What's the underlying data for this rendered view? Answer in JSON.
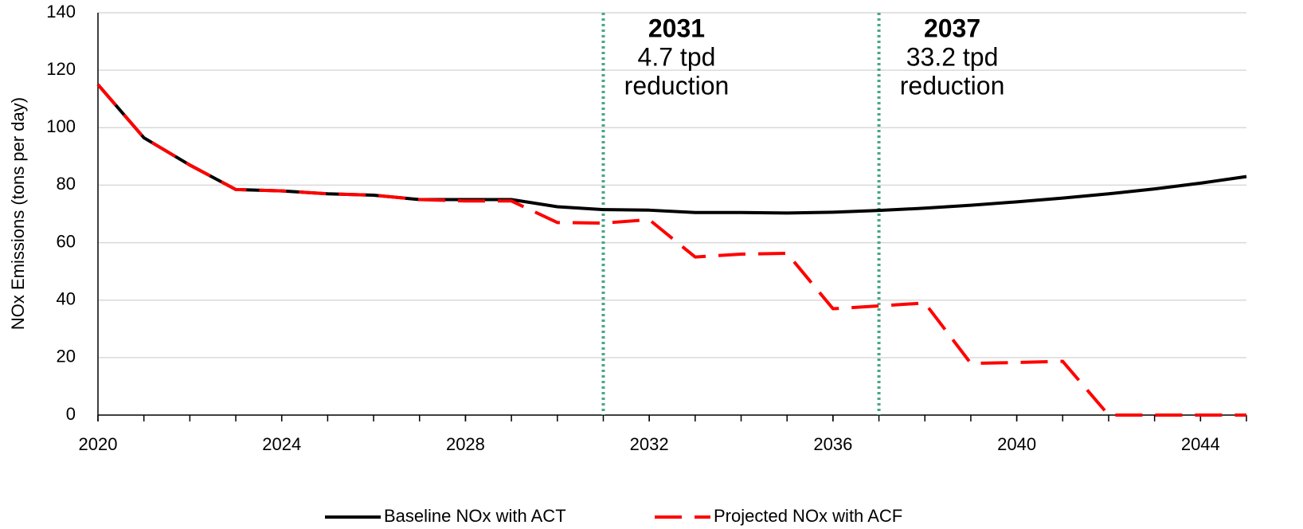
{
  "chart_data": {
    "type": "line",
    "ylabel": "NOx Emissions (tons per day)",
    "x": [
      2020,
      2021,
      2022,
      2023,
      2024,
      2025,
      2026,
      2027,
      2028,
      2029,
      2030,
      2031,
      2032,
      2033,
      2034,
      2035,
      2036,
      2037,
      2038,
      2039,
      2040,
      2041,
      2042,
      2043,
      2044,
      2045
    ],
    "series": [
      {
        "name": "Baseline NOx with ACT",
        "color": "#000000",
        "dash": false,
        "values": [
          115,
          96.5,
          87,
          78.5,
          78,
          77,
          76.5,
          75,
          75,
          75,
          72.5,
          71.5,
          71.3,
          70.5,
          70.5,
          70.3,
          70.6,
          71.2,
          72,
          73,
          74.2,
          75.5,
          77,
          78.7,
          80.7,
          83
        ]
      },
      {
        "name": "Projected NOx with ACF",
        "color": "#ff0000",
        "dash": true,
        "values": [
          115,
          96.5,
          87,
          78.5,
          78,
          77,
          76.5,
          75,
          74.5,
          74.5,
          67,
          66.8,
          68,
          55,
          56,
          56.3,
          37,
          38,
          39,
          18,
          18.3,
          18.7,
          0,
          0,
          0,
          0
        ]
      }
    ],
    "xlim": [
      2020,
      2045
    ],
    "xticks": [
      2020,
      2024,
      2028,
      2032,
      2036,
      2040,
      2044
    ],
    "ylim": [
      0,
      140
    ],
    "yticks": [
      0,
      20,
      40,
      60,
      80,
      100,
      120,
      140
    ],
    "grid": true,
    "legend": "bottom",
    "annotations": [
      {
        "x": 2031,
        "year": "2031",
        "amount": "4.7 tpd",
        "text": "reduction",
        "color": "#4aa58a"
      },
      {
        "x": 2037,
        "year": "2037",
        "amount": "33.2 tpd",
        "text": "reduction",
        "color": "#4aa58a"
      }
    ]
  }
}
